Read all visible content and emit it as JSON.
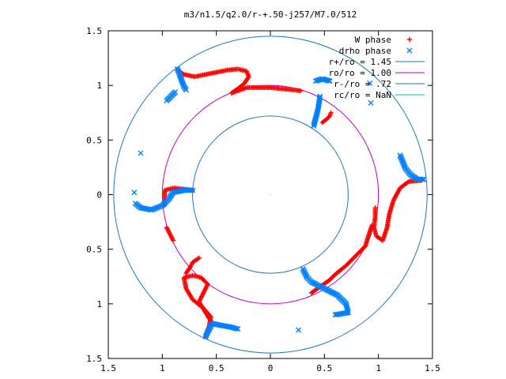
{
  "chart_data": {
    "type": "scatter",
    "title": "m3/n1.5/q2.0/r-+.50-j257/M7.0/512",
    "xlabel": "",
    "ylabel": "",
    "xlim": [
      -1.5,
      1.5
    ],
    "ylim": [
      -1.5,
      1.5
    ],
    "x_ticks": [
      -1.5,
      -1,
      -0.5,
      0,
      0.5,
      1,
      1.5
    ],
    "y_ticks": [
      -1.5,
      -1,
      -0.5,
      0,
      0.5,
      1,
      1.5
    ],
    "x_tick_labels": [
      "1.5",
      "1",
      "0.5",
      "0",
      "0.5",
      "1",
      "1.5"
    ],
    "y_tick_labels": [
      "1.5",
      "1",
      "0.5",
      "0",
      "0.5",
      "1",
      "1.5"
    ],
    "grid": false,
    "legend_position": "top-right",
    "legend": [
      {
        "label": "W phase",
        "marker": "+",
        "color": "#ff0000"
      },
      {
        "label": "drho phase",
        "marker": "x",
        "color": "#0080ff"
      },
      {
        "label": "r+/ro = 1.45",
        "line": true,
        "color": "#1f78c8"
      },
      {
        "label": "ro/ro = 1.00",
        "line": true,
        "color": "#c000c0"
      },
      {
        "label": "r-/ro = .72",
        "line": true,
        "color": "#1f78c8"
      },
      {
        "label": "rc/ro = NaN",
        "line": true,
        "color": "#00c0c0"
      }
    ],
    "circles": [
      {
        "name": "r+/ro",
        "r": 1.45,
        "color": "#1f78c8"
      },
      {
        "name": "ro/ro",
        "r": 1.0,
        "color": "#c000c0"
      },
      {
        "name": "r-/ro",
        "r": 0.72,
        "color": "#1f78c8"
      }
    ],
    "series": [
      {
        "name": "W phase",
        "color": "#ff0000",
        "points": [
          [
            -0.86,
            1.14
          ],
          [
            -0.8,
            1.1
          ],
          [
            -0.7,
            1.08
          ],
          [
            -0.6,
            1.1
          ],
          [
            -0.5,
            1.12
          ],
          [
            -0.4,
            1.14
          ],
          [
            -0.3,
            1.15
          ],
          [
            -0.22,
            1.13
          ],
          [
            -0.2,
            1.08
          ],
          [
            -0.24,
            1.02
          ],
          [
            -0.3,
            0.97
          ],
          [
            -0.36,
            0.93
          ],
          [
            -0.22,
            0.98
          ],
          [
            -0.12,
            0.98
          ],
          [
            0.0,
            0.98
          ],
          [
            0.1,
            0.97
          ],
          [
            0.2,
            0.96
          ],
          [
            0.28,
            0.95
          ],
          [
            0.56,
            0.75
          ],
          [
            0.55,
            0.72
          ],
          [
            0.52,
            0.69
          ],
          [
            0.48,
            0.66
          ],
          [
            1.4,
            0.13
          ],
          [
            1.28,
            0.12
          ],
          [
            1.2,
            0.06
          ],
          [
            1.14,
            -0.05
          ],
          [
            1.1,
            -0.18
          ],
          [
            1.08,
            -0.3
          ],
          [
            1.04,
            -0.42
          ],
          [
            0.98,
            -0.38
          ],
          [
            0.96,
            -0.3
          ],
          [
            0.97,
            -0.2
          ],
          [
            0.97,
            -0.12
          ],
          [
            0.94,
            -0.28
          ],
          [
            0.92,
            -0.34
          ],
          [
            0.9,
            -0.4
          ],
          [
            0.88,
            -0.47
          ],
          [
            0.8,
            -0.55
          ],
          [
            0.7,
            -0.65
          ],
          [
            0.6,
            -0.73
          ],
          [
            0.55,
            -0.78
          ],
          [
            0.45,
            -0.85
          ],
          [
            0.38,
            -0.9
          ],
          [
            -0.6,
            -1.3
          ],
          [
            -0.57,
            -1.22
          ],
          [
            -0.55,
            -1.12
          ],
          [
            -0.62,
            -1.04
          ],
          [
            -0.72,
            -0.96
          ],
          [
            -0.78,
            -0.86
          ],
          [
            -0.8,
            -0.76
          ],
          [
            -0.72,
            -0.74
          ],
          [
            -0.64,
            -0.76
          ],
          [
            -0.58,
            -0.82
          ],
          [
            -0.62,
            -0.9
          ],
          [
            -0.66,
            -0.98
          ],
          [
            -0.6,
            -1.08
          ],
          [
            -0.55,
            -1.16
          ],
          [
            -0.58,
            -1.24
          ],
          [
            -0.66,
            -0.58
          ],
          [
            -0.72,
            -0.62
          ],
          [
            -0.74,
            -0.66
          ],
          [
            -0.78,
            -0.72
          ],
          [
            -0.9,
            -0.42
          ],
          [
            -0.96,
            -0.3
          ],
          [
            -0.98,
            -0.1
          ],
          [
            -0.98,
            0.04
          ],
          [
            -0.9,
            0.06
          ],
          [
            -0.8,
            0.05
          ],
          [
            -0.72,
            0.04
          ]
        ]
      },
      {
        "name": "drho phase",
        "color": "#0080ff",
        "points": [
          [
            -0.86,
            1.15
          ],
          [
            -0.84,
            1.1
          ],
          [
            -0.82,
            1.04
          ],
          [
            -0.8,
            0.99
          ],
          [
            -0.78,
            0.96
          ],
          [
            -0.96,
            0.86
          ],
          [
            -0.88,
            0.94
          ],
          [
            -1.2,
            0.38
          ],
          [
            -1.26,
            0.02
          ],
          [
            0.42,
            1.04
          ],
          [
            0.48,
            1.06
          ],
          [
            0.55,
            1.04
          ],
          [
            0.46,
            0.9
          ],
          [
            0.44,
            0.78
          ],
          [
            0.42,
            0.7
          ],
          [
            0.4,
            0.63
          ],
          [
            0.92,
            1.02
          ],
          [
            0.93,
            0.84
          ],
          [
            1.42,
            0.14
          ],
          [
            1.36,
            0.14
          ],
          [
            1.3,
            0.18
          ],
          [
            1.25,
            0.24
          ],
          [
            1.2,
            0.36
          ],
          [
            0.3,
            -0.68
          ],
          [
            0.34,
            -0.76
          ],
          [
            0.38,
            -0.8
          ],
          [
            0.5,
            -0.86
          ],
          [
            0.62,
            -0.92
          ],
          [
            0.7,
            -1.0
          ],
          [
            0.72,
            -1.08
          ],
          [
            0.6,
            -1.1
          ],
          [
            0.26,
            -1.24
          ],
          [
            -0.6,
            -1.3
          ],
          [
            -0.54,
            -1.18
          ],
          [
            -0.44,
            -1.2
          ],
          [
            -0.38,
            -1.21
          ],
          [
            -0.3,
            -1.23
          ],
          [
            -1.25,
            -0.08
          ],
          [
            -1.2,
            -0.12
          ],
          [
            -1.1,
            -0.14
          ],
          [
            -1.0,
            -0.1
          ],
          [
            -0.94,
            -0.04
          ],
          [
            -0.9,
            0.02
          ],
          [
            -0.8,
            0.04
          ],
          [
            -0.72,
            0.04
          ]
        ]
      }
    ]
  }
}
